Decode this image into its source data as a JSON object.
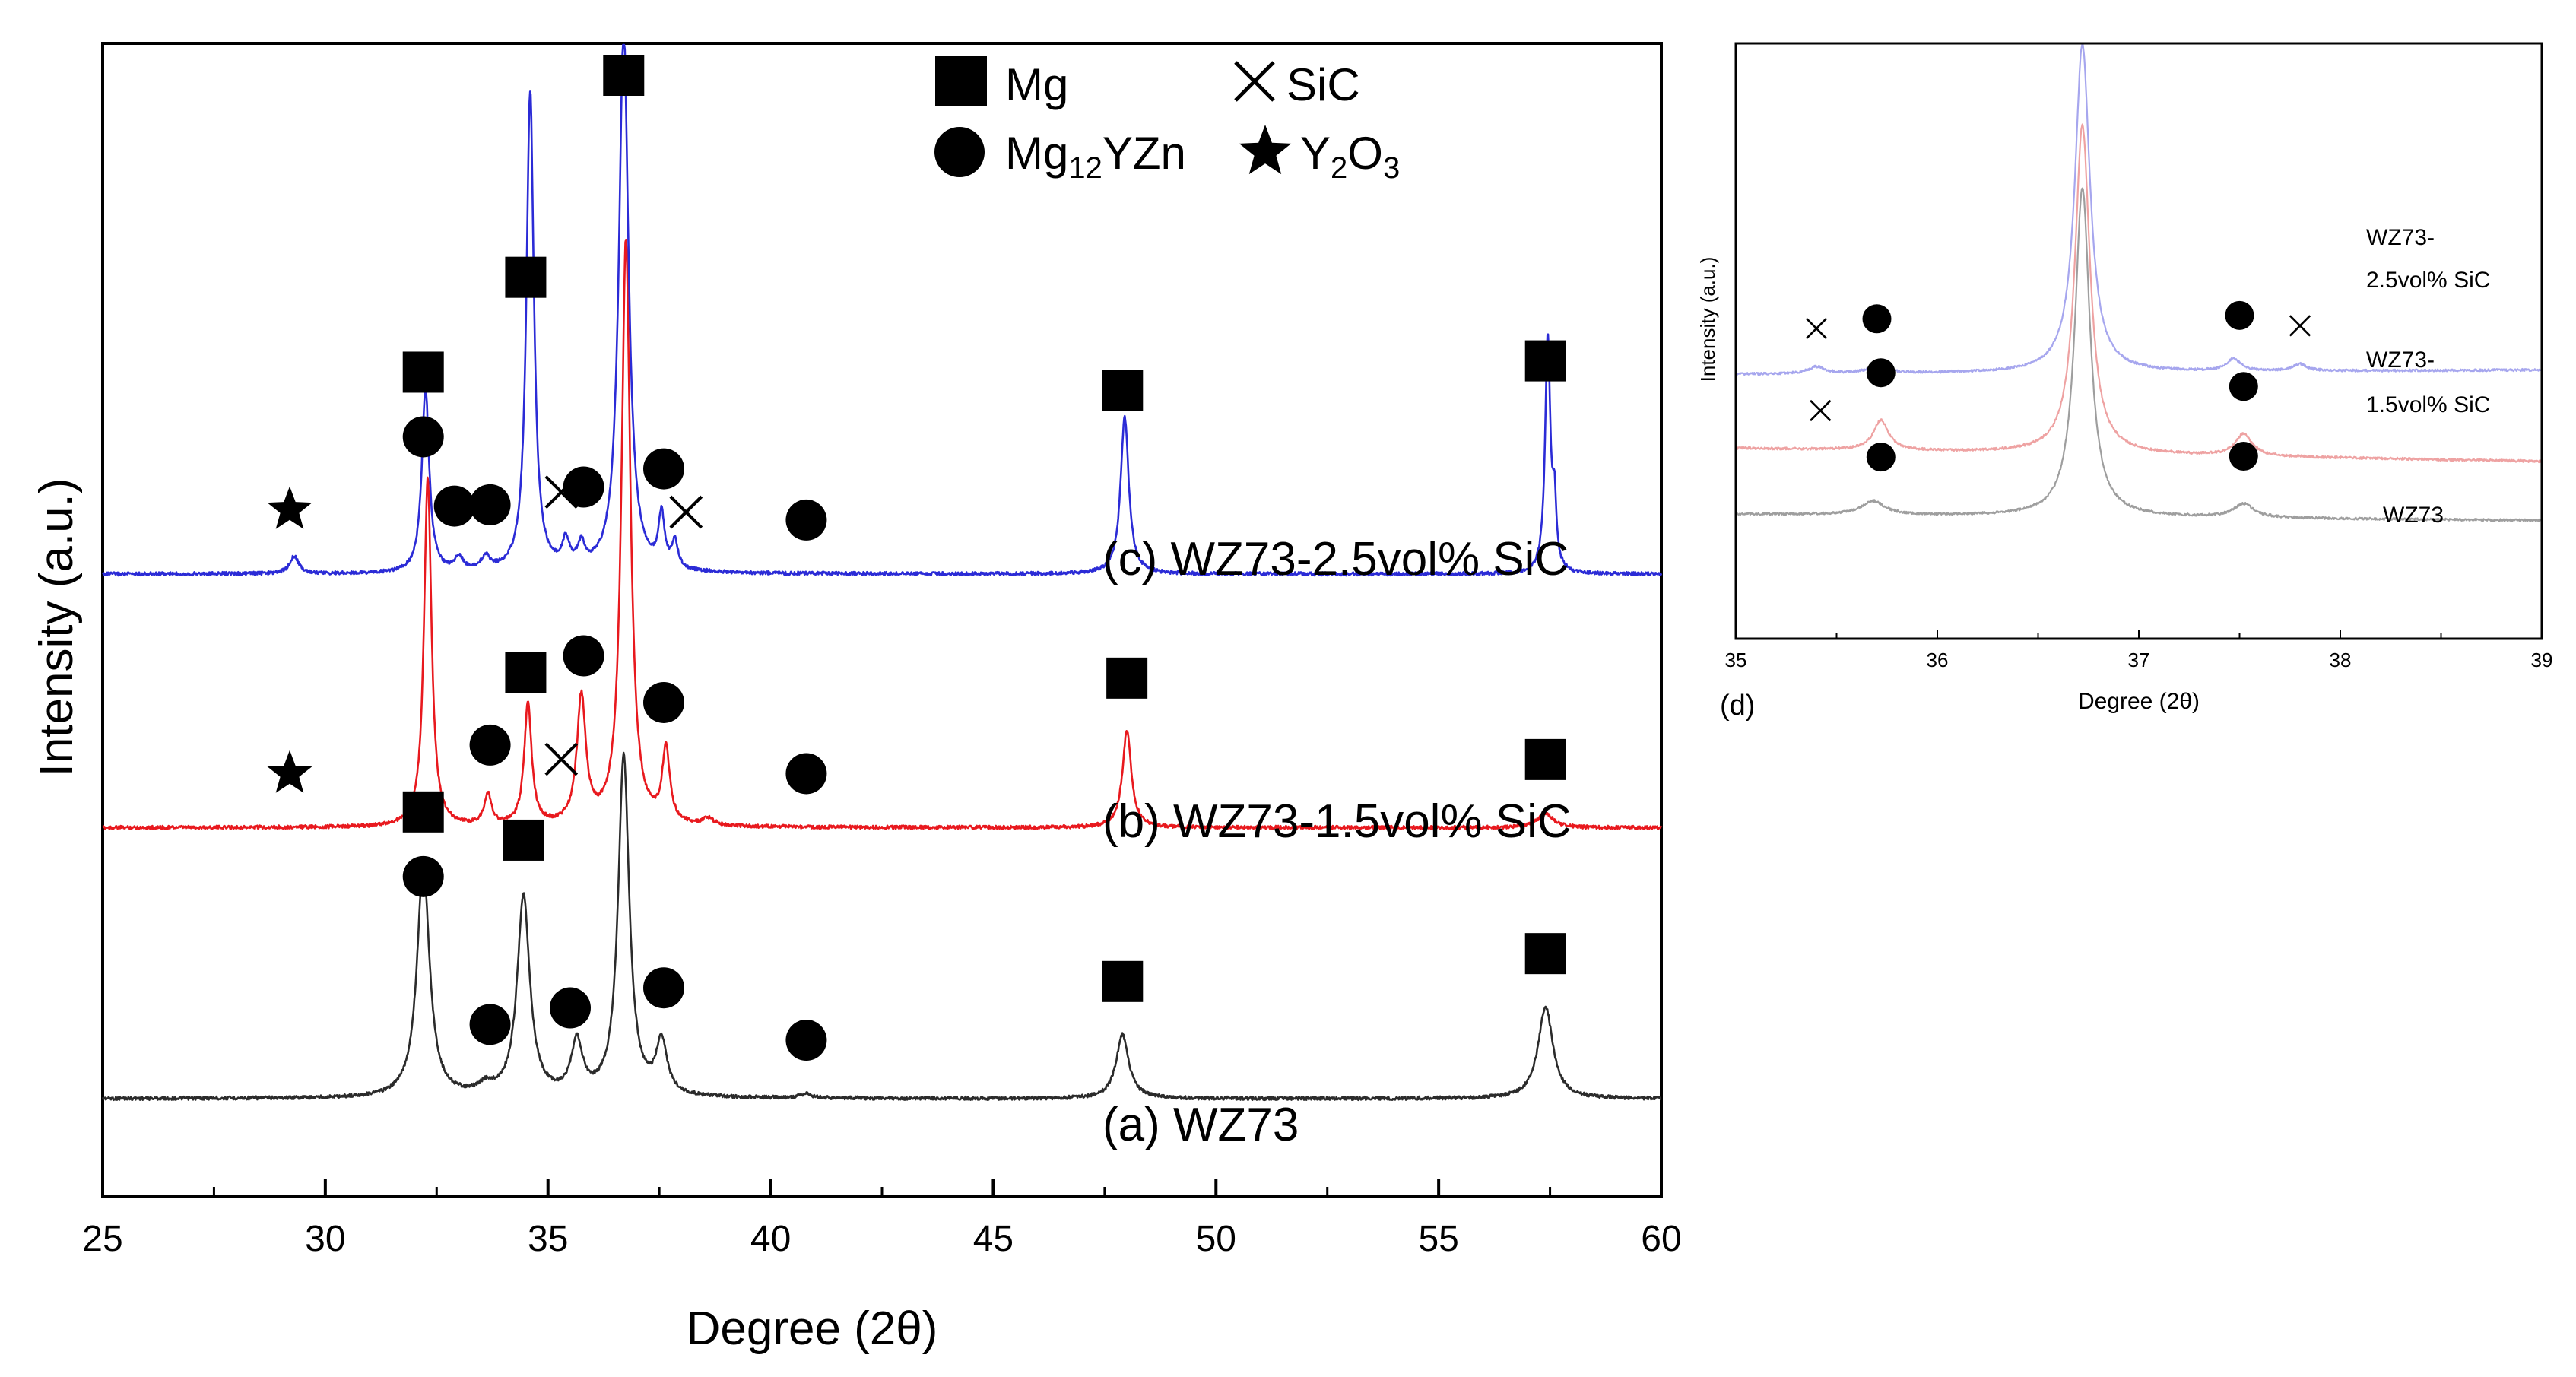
{
  "chart_data": [
    {
      "type": "line",
      "panel": "main",
      "xlabel": "Degree (2θ)",
      "ylabel": "Intensity (a.u.)",
      "xlim": [
        25,
        60
      ],
      "xticks": [
        25,
        30,
        35,
        40,
        45,
        50,
        55,
        60
      ],
      "yticks_shown": false,
      "legend": {
        "placement": "top-center",
        "entries": [
          {
            "symbol": "square",
            "label": "Mg"
          },
          {
            "symbol": "x",
            "label": "SiC"
          },
          {
            "symbol": "circle",
            "label_main": "Mg",
            "label_sub": "12",
            "label_tail": "YZn"
          },
          {
            "symbol": "star",
            "label_main": "Y",
            "label_sub": "2",
            "label_tail": "O",
            "label_sub2": "3"
          }
        ]
      },
      "series": [
        {
          "name": "(a) WZ73",
          "color": "#2b2b2b",
          "baseline": 0,
          "peaks": [
            {
              "x": 32.2,
              "h": 26.5,
              "w": 0.17
            },
            {
              "x": 34.45,
              "h": 23.0,
              "w": 0.17
            },
            {
              "x": 35.65,
              "h": 6.0,
              "w": 0.15
            },
            {
              "x": 36.7,
              "h": 39.0,
              "w": 0.15
            },
            {
              "x": 37.55,
              "h": 6.0,
              "w": 0.15
            },
            {
              "x": 47.9,
              "h": 7.3,
              "w": 0.17
            },
            {
              "x": 57.4,
              "h": 10.5,
              "w": 0.2
            },
            {
              "x": 33.6,
              "h": 1.0,
              "w": 0.2
            },
            {
              "x": 40.8,
              "h": 0.5,
              "w": 0.15
            }
          ]
        },
        {
          "name": "(b) WZ73-1.5vol% SiC",
          "color": "#e8191e",
          "baseline": 31,
          "peaks": [
            {
              "x": 32.3,
              "h": 40.0,
              "w": 0.1
            },
            {
              "x": 33.65,
              "h": 3.5,
              "w": 0.1
            },
            {
              "x": 34.55,
              "h": 14.0,
              "w": 0.1
            },
            {
              "x": 35.75,
              "h": 14.5,
              "w": 0.12
            },
            {
              "x": 36.75,
              "h": 67.0,
              "w": 0.12
            },
            {
              "x": 37.65,
              "h": 8.5,
              "w": 0.1
            },
            {
              "x": 48.0,
              "h": 11.0,
              "w": 0.12
            },
            {
              "x": 57.4,
              "h": 1.7,
              "w": 0.2
            },
            {
              "x": 38.6,
              "h": 0.8,
              "w": 0.15
            }
          ]
        },
        {
          "name": "(c) WZ73-2.5vol% SiC",
          "color": "#2b2bd6",
          "baseline": 60,
          "peaks": [
            {
              "x": 29.3,
              "h": 2.0,
              "w": 0.12
            },
            {
              "x": 32.25,
              "h": 21.0,
              "w": 0.1
            },
            {
              "x": 33.0,
              "h": 1.5,
              "w": 0.12
            },
            {
              "x": 33.6,
              "h": 1.5,
              "w": 0.12
            },
            {
              "x": 34.6,
              "h": 55.0,
              "w": 0.1
            },
            {
              "x": 35.4,
              "h": 3.0,
              "w": 0.1
            },
            {
              "x": 35.75,
              "h": 2.5,
              "w": 0.1
            },
            {
              "x": 36.7,
              "h": 62.0,
              "w": 0.13
            },
            {
              "x": 37.55,
              "h": 6.0,
              "w": 0.08
            },
            {
              "x": 37.85,
              "h": 3.0,
              "w": 0.08
            },
            {
              "x": 47.95,
              "h": 18.0,
              "w": 0.11
            },
            {
              "x": 57.45,
              "h": 27.0,
              "w": 0.07
            },
            {
              "x": 57.6,
              "h": 7.0,
              "w": 0.05
            }
          ]
        }
      ],
      "curve_labels": [
        "(a) WZ73",
        "(b) WZ73-1.5vol% SiC",
        "(c) WZ73-2.5vol% SiC"
      ],
      "phase_markers": [
        {
          "series": "(a) WZ73",
          "symbol": "square",
          "x": 32.2
        },
        {
          "series": "(a) WZ73",
          "symbol": "circle",
          "x": 32.2
        },
        {
          "series": "(a) WZ73",
          "symbol": "square",
          "x": 34.45
        },
        {
          "series": "(a) WZ73",
          "symbol": "circle",
          "x": 33.7
        },
        {
          "series": "(a) WZ73",
          "symbol": "circle",
          "x": 35.5
        },
        {
          "series": "(a) WZ73",
          "symbol": "circle",
          "x": 37.6
        },
        {
          "series": "(a) WZ73",
          "symbol": "circle",
          "x": 40.8
        },
        {
          "series": "(a) WZ73",
          "symbol": "square",
          "x": 47.9
        },
        {
          "series": "(a) WZ73",
          "symbol": "square",
          "x": 57.4
        },
        {
          "series": "(b) WZ73-1.5vol% SiC",
          "symbol": "star",
          "x": 29.2
        },
        {
          "series": "(b) WZ73-1.5vol% SiC",
          "symbol": "circle",
          "x": 33.7
        },
        {
          "series": "(b) WZ73-1.5vol% SiC",
          "symbol": "square",
          "x": 34.5
        },
        {
          "series": "(b) WZ73-1.5vol% SiC",
          "symbol": "x",
          "x": 35.3
        },
        {
          "series": "(b) WZ73-1.5vol% SiC",
          "symbol": "circle",
          "x": 35.8
        },
        {
          "series": "(b) WZ73-1.5vol% SiC",
          "symbol": "circle",
          "x": 37.6
        },
        {
          "series": "(b) WZ73-1.5vol% SiC",
          "symbol": "circle",
          "x": 40.8
        },
        {
          "series": "(b) WZ73-1.5vol% SiC",
          "symbol": "square",
          "x": 48.0
        },
        {
          "series": "(b) WZ73-1.5vol% SiC",
          "symbol": "square",
          "x": 57.4
        },
        {
          "series": "(c) WZ73-2.5vol% SiC",
          "symbol": "star",
          "x": 29.2
        },
        {
          "series": "(c) WZ73-2.5vol% SiC",
          "symbol": "square",
          "x": 32.2
        },
        {
          "series": "(c) WZ73-2.5vol% SiC",
          "symbol": "circle",
          "x": 32.2
        },
        {
          "series": "(c) WZ73-2.5vol% SiC",
          "symbol": "circle",
          "x": 32.9
        },
        {
          "series": "(c) WZ73-2.5vol% SiC",
          "symbol": "circle",
          "x": 33.7
        },
        {
          "series": "(c) WZ73-2.5vol% SiC",
          "symbol": "square",
          "x": 34.5
        },
        {
          "series": "(c) WZ73-2.5vol% SiC",
          "symbol": "x",
          "x": 35.3
        },
        {
          "series": "(c) WZ73-2.5vol% SiC",
          "symbol": "circle",
          "x": 35.8
        },
        {
          "series": "(c) WZ73-2.5vol% SiC",
          "symbol": "square",
          "x": 36.7
        },
        {
          "series": "(c) WZ73-2.5vol% SiC",
          "symbol": "circle",
          "x": 37.6
        },
        {
          "series": "(c) WZ73-2.5vol% SiC",
          "symbol": "x",
          "x": 38.1
        },
        {
          "series": "(c) WZ73-2.5vol% SiC",
          "symbol": "circle",
          "x": 40.8
        },
        {
          "series": "(c) WZ73-2.5vol% SiC",
          "symbol": "square",
          "x": 47.9
        },
        {
          "series": "(c) WZ73-2.5vol% SiC",
          "symbol": "square",
          "x": 57.4
        }
      ]
    },
    {
      "type": "line",
      "panel": "(d)",
      "panel_label": "(d)",
      "xlabel": "Degree (2θ)",
      "ylabel": "Intensity (a.u.)",
      "xlim": [
        35,
        39
      ],
      "xticks": [
        35,
        36,
        37,
        38,
        39
      ],
      "yticks_shown": false,
      "series": [
        {
          "name": "WZ73",
          "color": "#9e9e9e",
          "baseline": 10,
          "slope": -0.6,
          "peaks": [
            {
              "x": 35.68,
              "h": 5.0,
              "w": 0.07
            },
            {
              "x": 36.72,
              "h": 120,
              "w": 0.045
            },
            {
              "x": 37.52,
              "h": 5.0,
              "w": 0.06
            }
          ]
        },
        {
          "name": "WZ73-1.5vol% SiC",
          "color": "#eea2a2",
          "baseline": 34,
          "slope": -1.2,
          "peaks": [
            {
              "x": 35.72,
              "h": 11.0,
              "w": 0.045
            },
            {
              "x": 36.72,
              "h": 120,
              "w": 0.045
            },
            {
              "x": 37.52,
              "h": 8.0,
              "w": 0.05
            }
          ]
        },
        {
          "name": "WZ73-2.5vol% SiC",
          "color": "#a6a6ee",
          "baseline": 61,
          "slope": 0.4,
          "peaks": [
            {
              "x": 35.4,
              "h": 2.5,
              "w": 0.05
            },
            {
              "x": 35.7,
              "h": 2.5,
              "w": 0.06
            },
            {
              "x": 36.72,
              "h": 120,
              "w": 0.045
            },
            {
              "x": 37.47,
              "h": 4.5,
              "w": 0.04
            },
            {
              "x": 37.8,
              "h": 2.5,
              "w": 0.04
            }
          ]
        }
      ],
      "curve_labels": [
        {
          "series": "WZ73-2.5vol% SiC",
          "lines": [
            "WZ73-",
            "2.5vol% SiC"
          ]
        },
        {
          "series": "WZ73-1.5vol% SiC",
          "lines": [
            "WZ73-",
            "1.5vol% SiC"
          ]
        },
        {
          "series": "WZ73",
          "lines": [
            "WZ73"
          ]
        }
      ],
      "phase_markers": [
        {
          "series": "WZ73-2.5vol% SiC",
          "symbol": "x",
          "x": 35.4
        },
        {
          "series": "WZ73-2.5vol% SiC",
          "symbol": "circle",
          "x": 35.7
        },
        {
          "series": "WZ73-2.5vol% SiC",
          "symbol": "circle",
          "x": 37.5
        },
        {
          "series": "WZ73-2.5vol% SiC",
          "symbol": "x",
          "x": 37.8
        },
        {
          "series": "WZ73-1.5vol% SiC",
          "symbol": "circle",
          "x": 35.72
        },
        {
          "series": "WZ73-1.5vol% SiC",
          "symbol": "x",
          "x": 35.42
        },
        {
          "series": "WZ73-1.5vol% SiC",
          "symbol": "circle",
          "x": 37.52
        },
        {
          "series": "WZ73",
          "symbol": "circle",
          "x": 35.72
        },
        {
          "series": "WZ73",
          "symbol": "circle",
          "x": 37.52
        }
      ]
    }
  ]
}
